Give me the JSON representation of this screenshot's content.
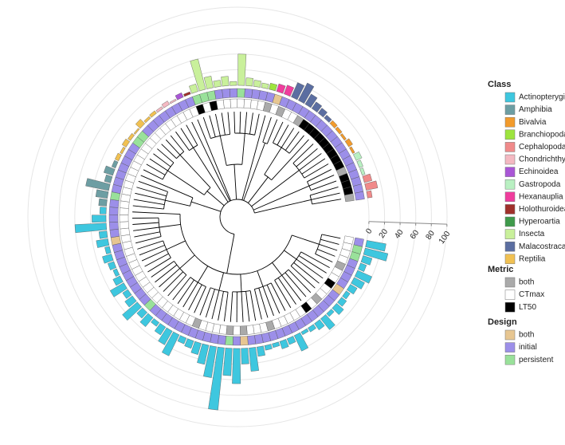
{
  "chart_data": {
    "type": "circular-tree",
    "rlim": [
      0,
      100
    ],
    "rticks": [
      0,
      20,
      40,
      60,
      80,
      100
    ],
    "grid": true,
    "class_legend": {
      "title": "Class",
      "items": [
        {
          "name": "Actinopterygii",
          "color": "#3ec7df"
        },
        {
          "name": "Amphibia",
          "color": "#6d9ea3"
        },
        {
          "name": "Bivalvia",
          "color": "#f29b2c"
        },
        {
          "name": "Branchiopoda",
          "color": "#9de43e"
        },
        {
          "name": "Cephalopoda",
          "color": "#f08a8a"
        },
        {
          "name": "Chondrichthyes",
          "color": "#f4b9c2"
        },
        {
          "name": "Echinoidea",
          "color": "#a956d6"
        },
        {
          "name": "Gastropoda",
          "color": "#b9f0c2"
        },
        {
          "name": "Hexanauplia",
          "color": "#f03d9d"
        },
        {
          "name": "Holothuroidea",
          "color": "#a0302b"
        },
        {
          "name": "Hyperoartia",
          "color": "#3f9a4b"
        },
        {
          "name": "Insecta",
          "color": "#c9f09b"
        },
        {
          "name": "Malacostraca",
          "color": "#5b6ea1"
        },
        {
          "name": "Reptilia",
          "color": "#f1c152"
        }
      ]
    },
    "metric_legend": {
      "title": "Metric",
      "items": [
        {
          "name": "both",
          "color": "#aaaaaa"
        },
        {
          "name": "CTmax",
          "color": "#ffffff"
        },
        {
          "name": "LT50",
          "color": "#000000"
        }
      ]
    },
    "design_legend": {
      "title": "Design",
      "items": [
        {
          "name": "both",
          "color": "#e7c691"
        },
        {
          "name": "initial",
          "color": "#9c8fe9"
        },
        {
          "name": "persistent",
          "color": "#99e19a"
        }
      ]
    },
    "groups": [
      {
        "class": "Actinopterygii",
        "values": [
          25,
          30,
          12,
          8,
          20,
          15,
          10,
          6,
          8,
          12,
          5,
          18,
          10,
          6,
          4,
          22,
          8,
          10,
          5,
          6,
          12,
          30,
          20,
          45,
          35,
          80,
          40,
          25,
          15,
          10,
          8,
          30,
          20,
          12,
          6,
          15,
          10,
          25,
          12,
          8,
          20,
          10,
          5,
          8,
          12,
          6,
          15,
          10,
          40,
          18,
          8
        ],
        "metric": [
          "CTmax",
          "CTmax",
          "CTmax",
          "CTmax",
          "both",
          "CTmax",
          "CTmax",
          "LT50",
          "CTmax",
          "CTmax",
          "both",
          "CTmax",
          "LT50",
          "CTmax",
          "CTmax",
          "CTmax",
          "CTmax",
          "CTmax",
          "both",
          "CTmax",
          "CTmax",
          "CTmax",
          "both",
          "CTmax",
          "both",
          "CTmax",
          "CTmax",
          "CTmax",
          "CTmax",
          "both",
          "CTmax",
          "CTmax",
          "CTmax",
          "CTmax",
          "CTmax",
          "CTmax",
          "CTmax",
          "CTmax",
          "CTmax",
          "CTmax",
          "CTmax",
          "CTmax",
          "CTmax",
          "CTmax",
          "CTmax",
          "CTmax",
          "CTmax",
          "CTmax",
          "CTmax",
          "CTmax",
          "CTmax"
        ],
        "design": [
          "initial",
          "persistent",
          "persistent",
          "initial",
          "initial",
          "initial",
          "initial",
          "both",
          "initial",
          "initial",
          "initial",
          "initial",
          "initial",
          "initial",
          "initial",
          "initial",
          "initial",
          "initial",
          "initial",
          "initial",
          "initial",
          "initial",
          "both",
          "initial",
          "persistent",
          "initial",
          "initial",
          "initial",
          "initial",
          "initial",
          "initial",
          "initial",
          "initial",
          "initial",
          "initial",
          "initial",
          "persistent",
          "initial",
          "initial",
          "initial",
          "initial",
          "initial",
          "initial",
          "initial",
          "initial",
          "initial",
          "both",
          "initial",
          "initial",
          "initial",
          "initial"
        ]
      },
      {
        "class": "Amphibia",
        "values": [
          10,
          15,
          30,
          8,
          12,
          5
        ],
        "metric": [
          "CTmax",
          "CTmax",
          "CTmax",
          "CTmax",
          "CTmax",
          "CTmax"
        ],
        "design": [
          "initial",
          "persistent",
          "initial",
          "initial",
          "initial",
          "initial"
        ]
      },
      {
        "class": "Reptilia",
        "values": [
          5,
          3,
          6,
          4,
          2,
          8,
          3,
          4
        ],
        "metric": [
          "CTmax",
          "CTmax",
          "CTmax",
          "CTmax",
          "CTmax",
          "CTmax",
          "CTmax",
          "CTmax"
        ],
        "design": [
          "initial",
          "initial",
          "initial",
          "persistent",
          "persistent",
          "initial",
          "initial",
          "initial"
        ]
      },
      {
        "class": "Chondrichthyes",
        "values": [
          3,
          5,
          2
        ],
        "metric": [
          "CTmax",
          "CTmax",
          "CTmax"
        ],
        "design": [
          "initial",
          "initial",
          "initial"
        ]
      },
      {
        "class": "Echinoidea",
        "values": [
          6
        ],
        "metric": [
          "CTmax"
        ],
        "design": [
          "initial"
        ]
      },
      {
        "class": "Holothuroidea",
        "values": [
          3
        ],
        "metric": [
          "CTmax"
        ],
        "design": [
          "initial"
        ]
      },
      {
        "class": "Insecta",
        "values": [
          10,
          40,
          15,
          8,
          12,
          5,
          40,
          10,
          8,
          6
        ],
        "metric": [
          "LT50",
          "CTmax",
          "LT50",
          "CTmax",
          "CTmax",
          "CTmax",
          "CTmax",
          "CTmax",
          "CTmax",
          "CTmax"
        ],
        "design": [
          "persistent",
          "persistent",
          "persistent",
          "initial",
          "initial",
          "initial",
          "persistent",
          "initial",
          "initial",
          "initial"
        ]
      },
      {
        "class": "Branchiopoda",
        "values": [
          8
        ],
        "metric": [
          "both"
        ],
        "design": [
          "initial"
        ]
      },
      {
        "class": "Hexanauplia",
        "values": [
          10,
          12
        ],
        "metric": [
          "CTmax",
          "both"
        ],
        "design": [
          "both",
          "initial"
        ]
      },
      {
        "class": "Malacostraca",
        "values": [
          20,
          25,
          15,
          10,
          8,
          5
        ],
        "metric": [
          "CTmax",
          "CTmax",
          "both",
          "LT50",
          "LT50",
          "LT50"
        ],
        "design": [
          "initial",
          "initial",
          "initial",
          "initial",
          "initial",
          "initial"
        ]
      },
      {
        "class": "Bivalvia",
        "values": [
          5,
          4,
          3,
          6,
          3
        ],
        "metric": [
          "LT50",
          "LT50",
          "LT50",
          "LT50",
          "LT50"
        ],
        "design": [
          "initial",
          "initial",
          "initial",
          "initial",
          "initial"
        ]
      },
      {
        "class": "Gastropoda",
        "values": [
          8,
          5,
          4
        ],
        "metric": [
          "LT50",
          "both",
          "LT50"
        ],
        "design": [
          "initial",
          "initial",
          "initial"
        ]
      },
      {
        "class": "Cephalopoda",
        "values": [
          10,
          15,
          6
        ],
        "metric": [
          "LT50",
          "LT50",
          "both"
        ],
        "design": [
          "initial",
          "initial",
          "initial"
        ]
      }
    ]
  }
}
